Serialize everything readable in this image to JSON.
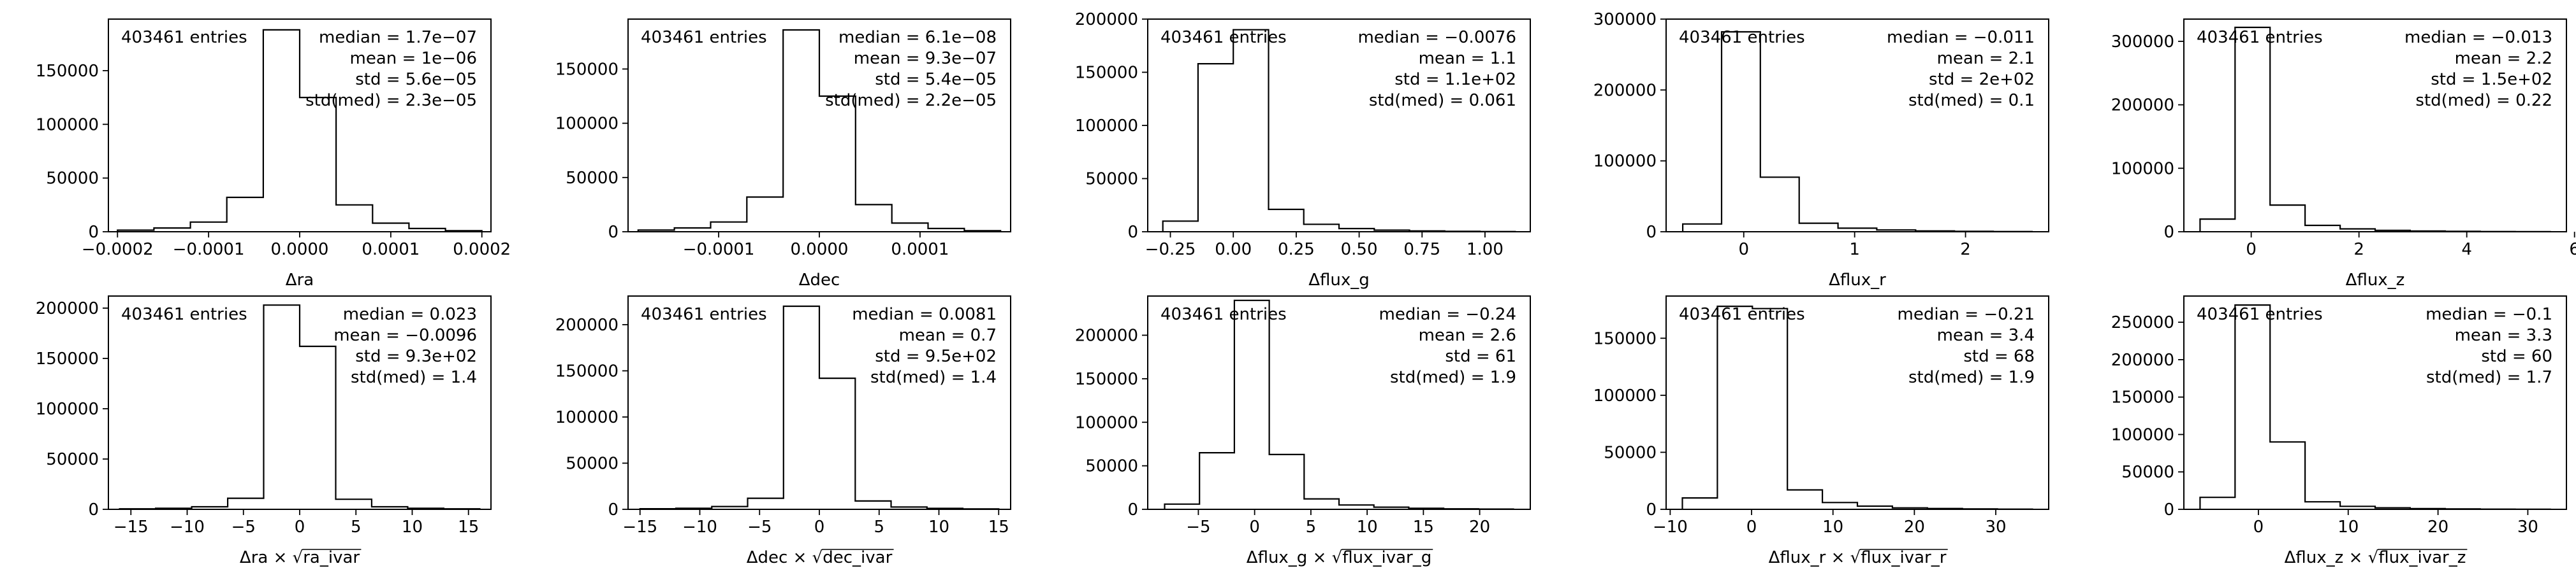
{
  "chart_data": [
    {
      "type": "histogram",
      "xlabel_main": "Δra",
      "xlabel_parts": [],
      "edges": [
        -0.0002,
        -0.00016,
        -0.00012,
        -8e-05,
        -4e-05,
        0.0,
        4e-05,
        8e-05,
        0.00012,
        0.00016,
        0.0002
      ],
      "counts": [
        1500,
        3500,
        9000,
        32000,
        188000,
        125000,
        25000,
        8000,
        3000,
        1000
      ],
      "xlim": [
        -0.00021,
        0.00021
      ],
      "ylim": [
        0,
        198000
      ],
      "xticks": [
        -0.0002,
        -0.0001,
        0.0,
        0.0001,
        0.0002
      ],
      "xticklabels": [
        "−0.0002",
        "−0.0001",
        "0.0000",
        "0.0001",
        "0.0002"
      ],
      "yticks": [
        0,
        50000,
        100000,
        150000
      ],
      "yticklabels": [
        "0",
        "50000",
        "100000",
        "150000"
      ],
      "entries_text": "403461 entries",
      "stats": [
        "median = 1.7e−07",
        "mean = 1e−06",
        "std = 5.6e−05",
        "std(med) = 2.3e−05"
      ]
    },
    {
      "type": "histogram",
      "xlabel_main": "Δdec",
      "xlabel_parts": [],
      "edges": [
        -0.00018,
        -0.000144,
        -0.000108,
        -7.2e-05,
        -3.6e-05,
        0.0,
        3.6e-05,
        7.2e-05,
        0.000108,
        0.000144,
        0.00018
      ],
      "counts": [
        1500,
        3500,
        9000,
        32000,
        186000,
        125000,
        25000,
        8000,
        3000,
        1000
      ],
      "xlim": [
        -0.00019,
        0.00019
      ],
      "ylim": [
        0,
        196000
      ],
      "xticks": [
        -0.0001,
        0.0,
        0.0001
      ],
      "xticklabels": [
        "−0.0001",
        "0.0000",
        "0.0001"
      ],
      "yticks": [
        0,
        50000,
        100000,
        150000
      ],
      "yticklabels": [
        "0",
        "50000",
        "100000",
        "150000"
      ],
      "entries_text": "403461 entries",
      "stats": [
        "median = 6.1e−08",
        "mean = 9.3e−07",
        "std = 5.4e−05",
        "std(med) = 2.2e−05"
      ]
    },
    {
      "type": "histogram",
      "xlabel_main": "Δflux_g",
      "xlabel_parts": [],
      "edges": [
        -0.28,
        -0.14,
        0.0,
        0.14,
        0.28,
        0.42,
        0.56,
        0.7,
        0.84,
        0.98,
        1.12
      ],
      "counts": [
        10000,
        158000,
        190000,
        21000,
        7000,
        3000,
        1500,
        800,
        400,
        200
      ],
      "xlim": [
        -0.34,
        1.18
      ],
      "ylim": [
        0,
        200000
      ],
      "xticks": [
        -0.25,
        0.0,
        0.25,
        0.5,
        0.75,
        1.0
      ],
      "xticklabels": [
        "−0.25",
        "0.00",
        "0.25",
        "0.50",
        "0.75",
        "1.00"
      ],
      "yticks": [
        0,
        50000,
        100000,
        150000,
        200000
      ],
      "yticklabels": [
        "0",
        "50000",
        "100000",
        "150000",
        "200000"
      ],
      "entries_text": "403461 entries",
      "stats": [
        "median = −0.0076",
        "mean = 1.1",
        "std = 1.1e+02",
        "std(med) = 0.061"
      ]
    },
    {
      "type": "histogram",
      "xlabel_main": "Δflux_r",
      "xlabel_parts": [],
      "edges": [
        -0.55,
        -0.2,
        0.15,
        0.5,
        0.85,
        1.2,
        1.55,
        1.9,
        2.25,
        2.6
      ],
      "counts": [
        11000,
        282000,
        77000,
        12000,
        5000,
        2500,
        1200,
        600,
        300
      ],
      "xlim": [
        -0.7,
        2.75
      ],
      "ylim": [
        0,
        300000
      ],
      "xticks": [
        0,
        1,
        2
      ],
      "xticklabels": [
        "0",
        "1",
        "2"
      ],
      "yticks": [
        0,
        100000,
        200000,
        300000
      ],
      "yticklabels": [
        "0",
        "100000",
        "200000",
        "300000"
      ],
      "entries_text": "403461 entries",
      "stats": [
        "median = −0.011",
        "mean = 2.1",
        "std = 2e+02",
        "std(med) = 0.1"
      ]
    },
    {
      "type": "histogram",
      "xlabel_main": "Δflux_z",
      "xlabel_parts": [],
      "edges": [
        -0.95,
        -0.3,
        0.35,
        1.0,
        1.65,
        2.3,
        2.95,
        3.6,
        4.25,
        4.9,
        5.55
      ],
      "counts": [
        20000,
        322000,
        42000,
        10000,
        4500,
        2200,
        1100,
        600,
        300,
        150
      ],
      "xlim": [
        -1.25,
        5.85
      ],
      "ylim": [
        0,
        335000
      ],
      "xticks": [
        0,
        2,
        4,
        6
      ],
      "xticklabels": [
        "0",
        "2",
        "4",
        "6"
      ],
      "yticks": [
        0,
        100000,
        200000,
        300000
      ],
      "yticklabels": [
        "0",
        "100000",
        "200000",
        "300000"
      ],
      "entries_text": "403461 entries",
      "stats": [
        "median = −0.013",
        "mean = 2.2",
        "std = 1.5e+02",
        "std(med) = 0.22"
      ]
    },
    {
      "type": "histogram",
      "xlabel_main": "",
      "xlabel_parts": [
        "Δra",
        "×",
        "√",
        "ra_ivar"
      ],
      "edges": [
        -16.0,
        -12.8,
        -9.6,
        -6.4,
        -3.2,
        0.0,
        3.2,
        6.4,
        9.6,
        12.8,
        16.0
      ],
      "counts": [
        500,
        1000,
        2500,
        11000,
        203000,
        162000,
        10000,
        2500,
        1000,
        500
      ],
      "xlim": [
        -17.0,
        17.0
      ],
      "ylim": [
        0,
        212000
      ],
      "xticks": [
        -15,
        -10,
        -5,
        0,
        5,
        10,
        15
      ],
      "xticklabels": [
        "−15",
        "−10",
        "−5",
        "0",
        "5",
        "10",
        "15"
      ],
      "yticks": [
        0,
        50000,
        100000,
        150000,
        200000
      ],
      "yticklabels": [
        "0",
        "50000",
        "100000",
        "150000",
        "200000"
      ],
      "entries_text": "403461 entries",
      "stats": [
        "median = 0.023",
        "mean = −0.0096",
        "std = 9.3e+02",
        "std(med) = 1.4"
      ]
    },
    {
      "type": "histogram",
      "xlabel_main": "",
      "xlabel_parts": [
        "Δdec",
        "×",
        "√",
        "dec_ivar"
      ],
      "edges": [
        -15.0,
        -12.0,
        -9.0,
        -6.0,
        -3.0,
        0.0,
        3.0,
        6.0,
        9.0,
        12.0,
        15.0
      ],
      "counts": [
        600,
        1200,
        3000,
        12000,
        220000,
        142000,
        9000,
        2500,
        1000,
        500
      ],
      "xlim": [
        -16.0,
        16.0
      ],
      "ylim": [
        0,
        231000
      ],
      "xticks": [
        -15,
        -10,
        -5,
        0,
        5,
        10,
        15
      ],
      "xticklabels": [
        "−15",
        "−10",
        "−5",
        "0",
        "5",
        "10",
        "15"
      ],
      "yticks": [
        0,
        50000,
        100000,
        150000,
        200000
      ],
      "yticklabels": [
        "0",
        "50000",
        "100000",
        "150000",
        "200000"
      ],
      "entries_text": "403461 entries",
      "stats": [
        "median = 0.0081",
        "mean = 0.7",
        "std = 9.5e+02",
        "std(med) = 1.4"
      ]
    },
    {
      "type": "histogram",
      "xlabel_main": "",
      "xlabel_parts": [
        "Δflux_g",
        "×",
        "√",
        "flux_ivar_g"
      ],
      "edges": [
        -8.0,
        -4.9,
        -1.8,
        1.3,
        4.4,
        7.5,
        10.6,
        13.7,
        16.8,
        19.9,
        23.0
      ],
      "counts": [
        6000,
        65000,
        240000,
        63000,
        12000,
        5000,
        2500,
        1200,
        600,
        300
      ],
      "xlim": [
        -9.5,
        24.5
      ],
      "ylim": [
        0,
        245000
      ],
      "xticks": [
        -5,
        0,
        5,
        10,
        15,
        20
      ],
      "xticklabels": [
        "−5",
        "0",
        "5",
        "10",
        "15",
        "20"
      ],
      "yticks": [
        0,
        50000,
        100000,
        150000,
        200000
      ],
      "yticklabels": [
        "0",
        "50000",
        "100000",
        "150000",
        "200000"
      ],
      "entries_text": "403461 entries",
      "stats": [
        "median = −0.24",
        "mean = 2.6",
        "std = 61",
        "std(med) = 1.9"
      ]
    },
    {
      "type": "histogram",
      "xlabel_main": "",
      "xlabel_parts": [
        "Δflux_r",
        "×",
        "√",
        "flux_ivar_r"
      ],
      "edges": [
        -8.5,
        -4.2,
        0.1,
        4.4,
        8.7,
        13.0,
        17.3,
        21.6,
        25.9,
        30.2,
        34.5
      ],
      "counts": [
        10000,
        178000,
        176000,
        17000,
        6000,
        2800,
        1300,
        700,
        350,
        150
      ],
      "xlim": [
        -10.5,
        36.5
      ],
      "ylim": [
        0,
        187000
      ],
      "xticks": [
        -10,
        0,
        10,
        20,
        30
      ],
      "xticklabels": [
        "−10",
        "0",
        "10",
        "20",
        "30"
      ],
      "yticks": [
        0,
        50000,
        100000,
        150000
      ],
      "yticklabels": [
        "0",
        "50000",
        "100000",
        "150000"
      ],
      "entries_text": "403461 entries",
      "stats": [
        "median = −0.21",
        "mean = 3.4",
        "std = 68",
        "std(med) = 1.9"
      ]
    },
    {
      "type": "histogram",
      "xlabel_main": "",
      "xlabel_parts": [
        "Δflux_z",
        "×",
        "√",
        "flux_ivar_z"
      ],
      "edges": [
        -6.5,
        -2.6,
        1.3,
        5.2,
        9.1,
        13.0,
        16.9,
        20.8,
        24.7,
        28.6,
        32.5
      ],
      "counts": [
        16000,
        273000,
        90000,
        10000,
        4000,
        2000,
        1000,
        500,
        250,
        120
      ],
      "xlim": [
        -8.3,
        34.3
      ],
      "ylim": [
        0,
        285000
      ],
      "xticks": [
        0,
        10,
        20,
        30
      ],
      "xticklabels": [
        "0",
        "10",
        "20",
        "30"
      ],
      "yticks": [
        0,
        50000,
        100000,
        150000,
        200000,
        250000
      ],
      "yticklabels": [
        "0",
        "50000",
        "100000",
        "150000",
        "200000",
        "250000"
      ],
      "entries_text": "403461 entries",
      "stats": [
        "median = −0.1",
        "mean = 3.3",
        "std = 60",
        "std(med) = 1.7"
      ]
    }
  ]
}
